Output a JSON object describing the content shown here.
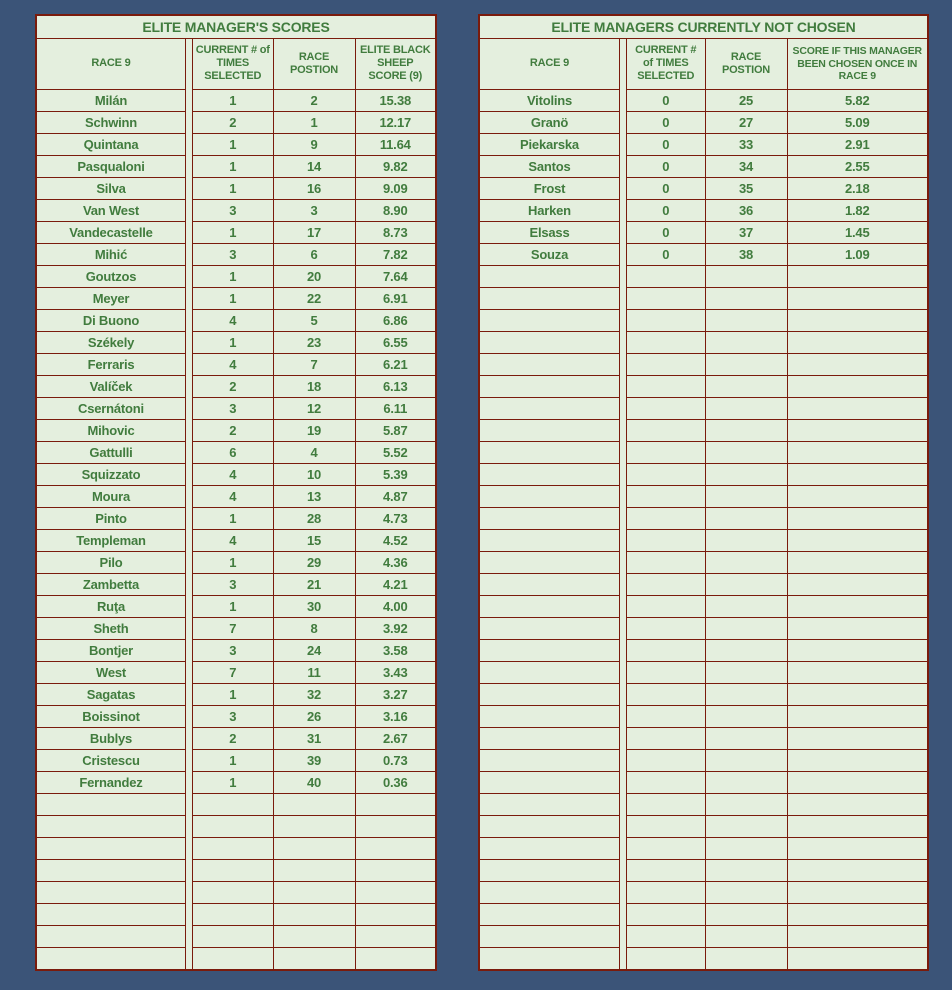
{
  "colors": {
    "page_background": "#3B5478",
    "cell_background": "#E4EFDE",
    "text_green": "#417C3E",
    "grid_maroon": "#7A1B0C"
  },
  "left_table": {
    "title": "ELITE MANAGER'S SCORES",
    "columns": [
      "RACE 9",
      "CURRENT # of TIMES SELECTED",
      "RACE POSTION",
      "ELITE BLACK SHEEP SCORE (9)"
    ],
    "rows": [
      [
        "Milán",
        "1",
        "2",
        "15.38"
      ],
      [
        "Schwinn",
        "2",
        "1",
        "12.17"
      ],
      [
        "Quintana",
        "1",
        "9",
        "11.64"
      ],
      [
        "Pasqualoni",
        "1",
        "14",
        "9.82"
      ],
      [
        "Silva",
        "1",
        "16",
        "9.09"
      ],
      [
        "Van West",
        "3",
        "3",
        "8.90"
      ],
      [
        "Vandecastelle",
        "1",
        "17",
        "8.73"
      ],
      [
        "Mihić",
        "3",
        "6",
        "7.82"
      ],
      [
        "Goutzos",
        "1",
        "20",
        "7.64"
      ],
      [
        "Meyer",
        "1",
        "22",
        "6.91"
      ],
      [
        "Di Buono",
        "4",
        "5",
        "6.86"
      ],
      [
        "Székely",
        "1",
        "23",
        "6.55"
      ],
      [
        "Ferraris",
        "4",
        "7",
        "6.21"
      ],
      [
        "Valíček",
        "2",
        "18",
        "6.13"
      ],
      [
        "Csernátoni",
        "3",
        "12",
        "6.11"
      ],
      [
        "Mihovic",
        "2",
        "19",
        "5.87"
      ],
      [
        "Gattulli",
        "6",
        "4",
        "5.52"
      ],
      [
        "Squizzato",
        "4",
        "10",
        "5.39"
      ],
      [
        "Moura",
        "4",
        "13",
        "4.87"
      ],
      [
        "Pinto",
        "1",
        "28",
        "4.73"
      ],
      [
        "Templeman",
        "4",
        "15",
        "4.52"
      ],
      [
        "Pilo",
        "1",
        "29",
        "4.36"
      ],
      [
        "Zambetta",
        "3",
        "21",
        "4.21"
      ],
      [
        "Ruţa",
        "1",
        "30",
        "4.00"
      ],
      [
        "Sheth",
        "7",
        "8",
        "3.92"
      ],
      [
        "Bontjer",
        "3",
        "24",
        "3.58"
      ],
      [
        "West",
        "7",
        "11",
        "3.43"
      ],
      [
        "Sagatas",
        "1",
        "32",
        "3.27"
      ],
      [
        "Boissinot",
        "3",
        "26",
        "3.16"
      ],
      [
        "Bublys",
        "2",
        "31",
        "2.67"
      ],
      [
        "Cristescu",
        "1",
        "39",
        "0.73"
      ],
      [
        "Fernandez",
        "1",
        "40",
        "0.36"
      ]
    ],
    "empty_rows": 8
  },
  "right_table": {
    "title": "ELITE MANAGERS CURRENTLY NOT CHOSEN",
    "columns": [
      "RACE 9",
      "CURRENT # of TIMES SELECTED",
      "RACE POSTION",
      "SCORE IF THIS MANAGER BEEN CHOSEN ONCE IN RACE 9"
    ],
    "rows": [
      [
        "Vitolins",
        "0",
        "25",
        "5.82"
      ],
      [
        "Granö",
        "0",
        "27",
        "5.09"
      ],
      [
        "Piekarska",
        "0",
        "33",
        "2.91"
      ],
      [
        "Santos",
        "0",
        "34",
        "2.55"
      ],
      [
        "Frost",
        "0",
        "35",
        "2.18"
      ],
      [
        "Harken",
        "0",
        "36",
        "1.82"
      ],
      [
        "Elsass",
        "0",
        "37",
        "1.45"
      ],
      [
        "Souza",
        "0",
        "38",
        "1.09"
      ]
    ],
    "empty_rows": 32
  }
}
